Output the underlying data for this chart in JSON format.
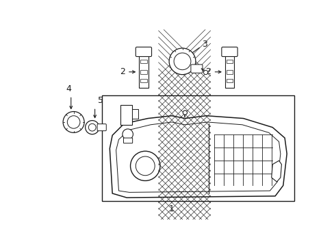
{
  "bg_color": "#ffffff",
  "line_color": "#1a1a1a",
  "lw": 1.0,
  "fig_width": 4.89,
  "fig_height": 3.6,
  "dpi": 100
}
